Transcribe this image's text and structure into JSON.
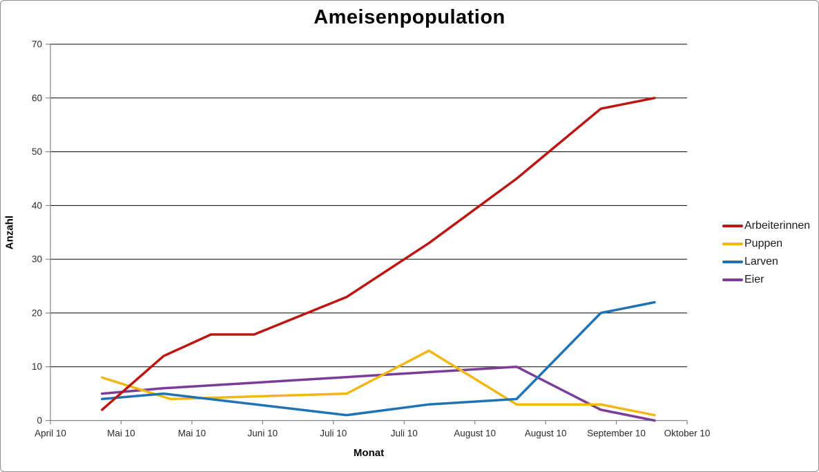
{
  "chart_data": {
    "type": "line",
    "title": "Ameisenpopulation",
    "xlabel": "Monat",
    "ylabel": "Anzahl",
    "ylim": [
      0,
      70
    ],
    "y_ticks": [
      0,
      10,
      20,
      30,
      40,
      50,
      60,
      70
    ],
    "x_tick_labels": [
      "April 10",
      "Mai 10",
      "Mai 10",
      "Juni 10",
      "Juli 10",
      "Juli 10",
      "August 10",
      "August 10",
      "September 10",
      "Oktober 10"
    ],
    "x_units": "tick-index units (0 = April 10 tick, 9 = Oktober 10 tick); points fall between month ticks",
    "grid": "horizontal",
    "legend_position": "right",
    "series": [
      {
        "name": "Arbeiterinnen",
        "color": "#bd1512",
        "points": [
          [
            0.73,
            2
          ],
          [
            1.6,
            12
          ],
          [
            2.27,
            16
          ],
          [
            2.88,
            16
          ],
          [
            4.19,
            23
          ],
          [
            5.35,
            33
          ],
          [
            6.59,
            45
          ],
          [
            7.78,
            58
          ],
          [
            8.54,
            60
          ]
        ]
      },
      {
        "name": "Puppen",
        "color": "#f2b712",
        "points": [
          [
            0.73,
            8
          ],
          [
            1.7,
            4
          ],
          [
            4.19,
            5
          ],
          [
            5.35,
            13
          ],
          [
            6.59,
            3
          ],
          [
            7.78,
            3
          ],
          [
            8.54,
            1
          ]
        ]
      },
      {
        "name": "Larven",
        "color": "#1f73b5",
        "points": [
          [
            0.73,
            4
          ],
          [
            1.6,
            5
          ],
          [
            4.19,
            1
          ],
          [
            5.35,
            3
          ],
          [
            6.59,
            4
          ],
          [
            7.78,
            20
          ],
          [
            8.54,
            22
          ]
        ]
      },
      {
        "name": "Eier",
        "color": "#7b3d99",
        "points": [
          [
            0.73,
            5
          ],
          [
            1.6,
            6
          ],
          [
            6.59,
            10
          ],
          [
            7.78,
            2
          ],
          [
            8.54,
            0
          ]
        ]
      }
    ],
    "colors": {
      "gridline": "#000000",
      "axis": "#848484",
      "background": "#ffffff",
      "frame_border": "#8f8f8f",
      "text": "#000000"
    }
  }
}
